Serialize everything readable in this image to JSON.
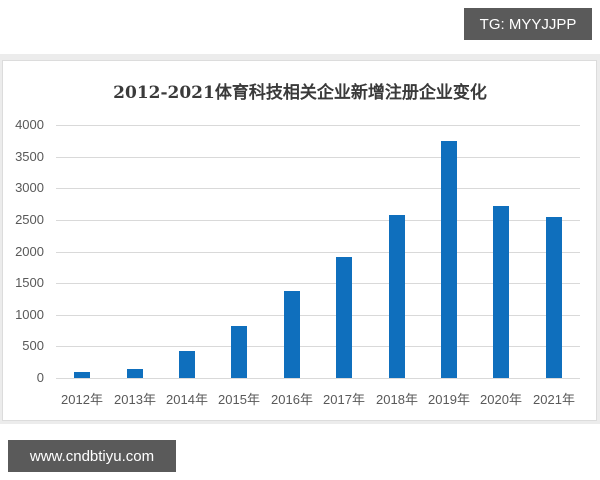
{
  "watermarks": {
    "top_right": "TG: MYYJJPP",
    "bottom_left": "www.cndbtiyu.com"
  },
  "colors": {
    "bar": "#0f6fbd",
    "gridline": "#d9d9d9",
    "text": "#595959",
    "watermark_bg": "#5a5a5a"
  },
  "chart_data": {
    "type": "bar",
    "title": "2012-2021体育科技相关企业新增注册企业变化",
    "xlabel": "",
    "ylabel": "",
    "categories": [
      "2012年",
      "2013年",
      "2014年",
      "2015年",
      "2016年",
      "2017年",
      "2018年",
      "2019年",
      "2020年",
      "2021年"
    ],
    "values": [
      90,
      140,
      430,
      830,
      1370,
      1910,
      2580,
      3750,
      2720,
      2550
    ],
    "ylim": [
      0,
      4000
    ],
    "yticks": [
      "0",
      "500",
      "1000",
      "1500",
      "2000",
      "2500",
      "3000",
      "3500",
      "4000"
    ],
    "grid": true,
    "legend": "none"
  }
}
